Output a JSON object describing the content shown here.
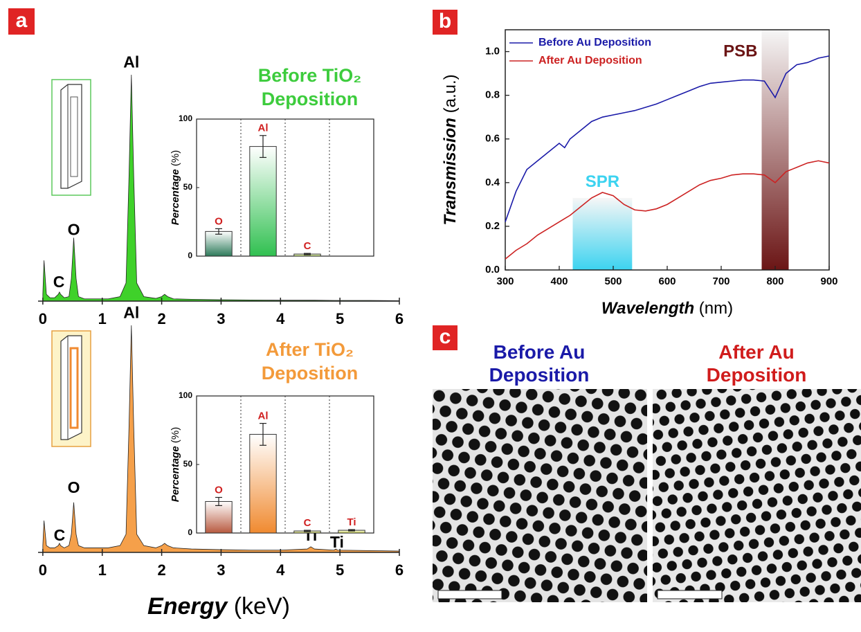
{
  "panels": [
    "a",
    "b",
    "c"
  ],
  "chart_data": [
    {
      "type": "area",
      "color": "#3fd12a",
      "x": [
        0,
        0.02,
        0.06,
        0.12,
        0.2,
        0.26,
        0.28,
        0.3,
        0.36,
        0.44,
        0.48,
        0.52,
        0.56,
        0.6,
        0.7,
        0.9,
        1.1,
        1.3,
        1.4,
        1.45,
        1.49,
        1.53,
        1.58,
        1.7,
        1.9,
        2.0,
        2.05,
        2.1,
        2.2,
        2.5,
        3,
        3.5,
        4,
        4.45,
        4.51,
        4.57,
        4.9,
        4.93,
        4.96,
        5.5,
        6
      ],
      "values": [
        0.03,
        0.18,
        0.03,
        0.015,
        0.015,
        0.03,
        0.04,
        0.03,
        0.015,
        0.02,
        0.1,
        0.28,
        0.1,
        0.02,
        0.01,
        0.01,
        0.01,
        0.02,
        0.08,
        0.55,
        1.0,
        0.55,
        0.08,
        0.02,
        0.012,
        0.02,
        0.03,
        0.02,
        0.01,
        0.008,
        0.006,
        0.005,
        0.004,
        0.004,
        0.004,
        0.004,
        0.003,
        0.003,
        0.003,
        0.003,
        0.002
      ],
      "xlim": [
        -0.08,
        6
      ],
      "ylim": [
        0,
        1
      ],
      "xticks": [
        0,
        1,
        2,
        3,
        4,
        5,
        6
      ],
      "annotations": [
        {
          "text": "Al",
          "x": 1.49,
          "y": 1.05
        },
        {
          "text": "O",
          "x": 0.52,
          "y": 0.31
        },
        {
          "text": "C",
          "x": 0.27,
          "y": 0.08
        }
      ]
    },
    {
      "type": "bar",
      "title": "Before TiO₂ Deposition",
      "title_color": "#3dcc3d",
      "categories": [
        "O",
        "Al",
        "C",
        null
      ],
      "values": [
        18,
        80,
        1.5,
        null
      ],
      "errors": [
        2,
        8,
        0.5,
        null
      ],
      "colors": [
        "#2d7a5a",
        "#30c050",
        "#a8d040",
        null
      ],
      "ylim": [
        0,
        100
      ],
      "yticks": [
        0,
        50,
        100
      ],
      "ylabel": "Percentage",
      "ylabel_unit": "(%)"
    },
    {
      "type": "area",
      "color": "#f5a04a",
      "x": [
        0,
        0.02,
        0.06,
        0.12,
        0.2,
        0.26,
        0.28,
        0.3,
        0.36,
        0.44,
        0.48,
        0.52,
        0.56,
        0.6,
        0.7,
        0.9,
        1.1,
        1.3,
        1.4,
        1.45,
        1.49,
        1.53,
        1.58,
        1.7,
        1.9,
        2.0,
        2.05,
        2.1,
        2.2,
        2.5,
        3,
        3.5,
        4,
        4.45,
        4.51,
        4.57,
        4.9,
        4.93,
        4.96,
        5.5,
        6
      ],
      "values": [
        0.03,
        0.14,
        0.03,
        0.02,
        0.02,
        0.03,
        0.04,
        0.03,
        0.02,
        0.03,
        0.08,
        0.22,
        0.08,
        0.03,
        0.02,
        0.02,
        0.02,
        0.03,
        0.08,
        0.55,
        1.0,
        0.55,
        0.08,
        0.03,
        0.02,
        0.03,
        0.04,
        0.03,
        0.02,
        0.015,
        0.012,
        0.01,
        0.01,
        0.015,
        0.025,
        0.015,
        0.01,
        0.015,
        0.01,
        0.008,
        0.006
      ],
      "xlim": [
        -0.08,
        6
      ],
      "ylim": [
        0,
        1
      ],
      "xticks": [
        0,
        1,
        2,
        3,
        4,
        5,
        6
      ],
      "annotations": [
        {
          "text": "Al",
          "x": 1.49,
          "y": 1.05
        },
        {
          "text": "O",
          "x": 0.52,
          "y": 0.28
        },
        {
          "text": "C",
          "x": 0.28,
          "y": 0.07
        },
        {
          "text": "Ti",
          "x": 4.5,
          "y": 0.07
        },
        {
          "text": "Ti",
          "x": 4.95,
          "y": 0.04
        }
      ],
      "xlabel": "Energy",
      "xlabel_unit": "(keV)"
    },
    {
      "type": "bar",
      "title": "After TiO₂ Deposition",
      "title_color": "#f39a3a",
      "categories": [
        "O",
        "Al",
        "C",
        "Ti"
      ],
      "values": [
        23,
        72,
        1.5,
        2
      ],
      "errors": [
        3,
        8,
        0.5,
        0.5
      ],
      "colors": [
        "#b85a40",
        "#f08a30",
        "#c8d040",
        "#c8d040"
      ],
      "ylim": [
        0,
        100
      ],
      "yticks": [
        0,
        50,
        100
      ],
      "ylabel": "Percentage",
      "ylabel_unit": "(%)"
    },
    {
      "type": "line",
      "x": [
        300,
        320,
        340,
        360,
        380,
        400,
        410,
        420,
        440,
        460,
        480,
        500,
        520,
        540,
        560,
        580,
        600,
        620,
        640,
        660,
        680,
        700,
        720,
        740,
        760,
        780,
        800,
        820,
        840,
        860,
        880,
        900
      ],
      "series": [
        {
          "name": "Before Au Deposition",
          "color": "#1a1aa8",
          "values": [
            0.22,
            0.36,
            0.46,
            0.5,
            0.54,
            0.58,
            0.56,
            0.6,
            0.64,
            0.68,
            0.7,
            0.71,
            0.72,
            0.73,
            0.745,
            0.76,
            0.78,
            0.8,
            0.82,
            0.84,
            0.855,
            0.86,
            0.865,
            0.87,
            0.87,
            0.865,
            0.79,
            0.9,
            0.94,
            0.95,
            0.97,
            0.98
          ]
        },
        {
          "name": "After Au Deposition",
          "color": "#cc2222",
          "values": [
            0.05,
            0.09,
            0.12,
            0.16,
            0.19,
            0.22,
            0.235,
            0.25,
            0.29,
            0.33,
            0.355,
            0.34,
            0.3,
            0.275,
            0.27,
            0.28,
            0.3,
            0.33,
            0.36,
            0.39,
            0.41,
            0.42,
            0.435,
            0.44,
            0.44,
            0.435,
            0.4,
            0.45,
            0.47,
            0.49,
            0.5,
            0.49
          ]
        }
      ],
      "bands": [
        {
          "label": "SPR",
          "x": [
            425,
            535
          ],
          "y": [
            0,
            0.33
          ],
          "color": "#3cd3f0"
        },
        {
          "label": "PSB",
          "x": [
            775,
            825
          ],
          "y": [
            0,
            1.1
          ],
          "color": "#6b1515"
        }
      ],
      "xlim": [
        300,
        900
      ],
      "ylim": [
        0,
        1.1
      ],
      "xticks": [
        300,
        400,
        500,
        600,
        700,
        800,
        900
      ],
      "yticks": [
        {
          "value": 0,
          "label": "0.0"
        },
        {
          "value": 0.2,
          "label": "0.2"
        },
        {
          "value": 0.4,
          "label": "0.4"
        },
        {
          "value": 0.6,
          "label": "0.6"
        },
        {
          "value": 0.8,
          "label": "0.8"
        },
        {
          "value": 1,
          "label": "1.0"
        }
      ],
      "xlabel": "Wavelength",
      "xlabel_unit": "(nm)",
      "ylabel": "Transmission",
      "ylabel_unit": "(a.u.)",
      "legend": "upper left"
    }
  ],
  "images": [
    {
      "title": "Before Au Deposition",
      "color": "#1a1aa8"
    },
    {
      "title": "After Au Deposition",
      "color": "#d01c1c"
    }
  ]
}
